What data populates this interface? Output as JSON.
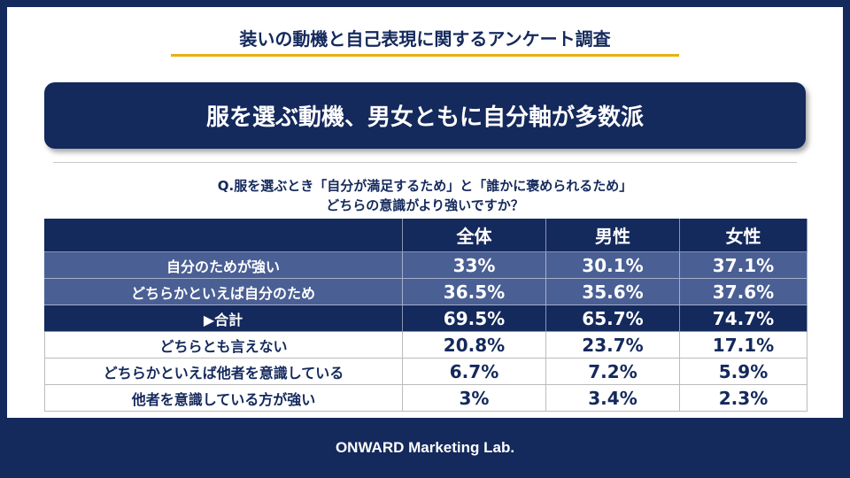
{
  "header": {
    "title": "装いの動機と自己表現に関するアンケート調査"
  },
  "banner": {
    "text": "服を選ぶ動機、男女ともに自分軸が多数派"
  },
  "question": {
    "lines": [
      "Q.服を選ぶとき「自分が満足するため」と「誰かに褒められるため」",
      "どちらの意識がより強いですか？"
    ]
  },
  "table": {
    "columns": [
      "全体",
      "男性",
      "女性"
    ],
    "rows": [
      [
        "自分のためが強い",
        "33%",
        "30.1%",
        "37.1%"
      ],
      [
        "どちらかといえば自分のため",
        "36.5%",
        "35.6%",
        "37.6%"
      ],
      [
        "▶合計",
        "69.5%",
        "65.7%",
        "74.7%"
      ],
      [
        "どちらとも言えない",
        "20.8%",
        "23.7%",
        "17.1%"
      ],
      [
        "どちらかといえば他者を意識している",
        "6.7%",
        "7.2%",
        "5.9%"
      ],
      [
        "他者を意識している方が強い",
        "3%",
        "3.4%",
        "2.3%"
      ]
    ]
  },
  "footer": {
    "text": "ONWARD Marketing Lab."
  }
}
